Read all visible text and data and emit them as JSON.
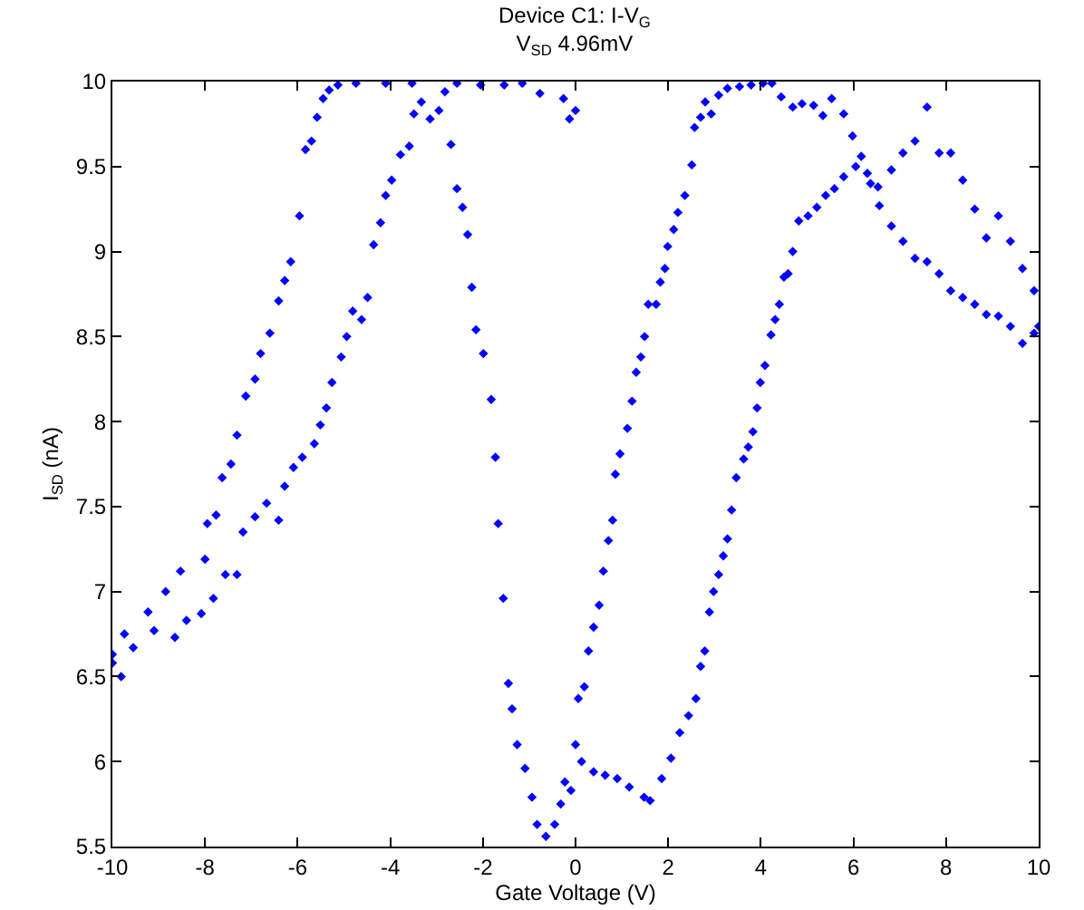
{
  "chart_data": {
    "type": "scatter",
    "title": "Device C1: I-V$_{G}$",
    "subtitle": "V$_{SD}$ 4.96mV",
    "xlabel": "Gate Voltage (V)",
    "ylabel": "I$_{SD}$ (nA)",
    "marker": "diamond",
    "grid": false,
    "xlim": [
      -10,
      10
    ],
    "xticks": [
      -10,
      -8,
      -6,
      -4,
      -2,
      0,
      2,
      4,
      6,
      8,
      10
    ],
    "ylim": [
      5.5,
      10
    ],
    "yticks": [
      5.5,
      6,
      6.5,
      7,
      7.5,
      8,
      8.5,
      9,
      9.5,
      10
    ],
    "series": [
      {
        "color": "#0000ff",
        "x": [
          -10,
          -9.74,
          -9.23,
          -8.85,
          -8.53,
          -8.0,
          -7.95,
          -7.76,
          -7.63,
          -7.44,
          -7.31,
          -7.12,
          -6.92,
          -6.8,
          -6.6,
          -6.41,
          -6.28,
          -6.15,
          -5.96,
          -5.83,
          -5.7,
          -5.58,
          -5.45,
          -5.32,
          -5.13,
          -4.74,
          -4.1,
          -3.53,
          -2.95,
          -2.69,
          -2.56,
          -2.44,
          -2.33,
          -2.24,
          -2.15,
          -1.99,
          -1.82,
          -1.73,
          -1.67,
          -1.56,
          -1.45,
          -1.37,
          -1.26,
          -1.09,
          -0.94,
          -0.83,
          -0.64,
          -0.45,
          -0.32,
          -0.23,
          -0.1,
          0,
          0.13,
          0.39,
          0.64,
          0.9,
          1.16,
          1.48,
          1.61,
          1.86,
          2.06,
          2.25,
          2.44,
          2.6,
          2.7,
          2.79,
          2.89,
          2.98,
          3.09,
          3.19,
          3.28,
          3.37,
          3.47,
          3.63,
          3.73,
          3.83,
          3.92,
          3.99,
          4.09,
          4.22,
          4.31,
          4.4,
          4.5,
          4.59,
          4.69,
          4.82,
          5.02,
          5.21,
          5.4,
          5.59,
          5.79,
          6.05,
          6.3,
          6.53,
          6.82,
          7.07,
          7.33,
          7.59,
          7.85,
          8.1,
          8.36,
          8.62,
          8.87,
          9.13,
          9.39,
          9.65,
          9.9,
          10
        ],
        "values": [
          6.63,
          6.75,
          6.88,
          7.0,
          7.12,
          7.19,
          7.4,
          7.45,
          7.67,
          7.75,
          7.92,
          8.15,
          8.25,
          8.4,
          8.52,
          8.71,
          8.83,
          8.94,
          9.21,
          9.6,
          9.65,
          9.79,
          9.9,
          9.95,
          9.98,
          9.99,
          9.99,
          9.99,
          9.83,
          9.63,
          9.37,
          9.26,
          9.1,
          8.79,
          8.54,
          8.4,
          8.13,
          7.79,
          7.4,
          6.96,
          6.46,
          6.31,
          6.1,
          5.96,
          5.79,
          5.63,
          5.56,
          5.63,
          5.75,
          5.88,
          5.83,
          6.1,
          6.0,
          5.94,
          5.92,
          5.9,
          5.85,
          5.79,
          5.77,
          5.9,
          6.02,
          6.17,
          6.27,
          6.37,
          6.56,
          6.65,
          6.88,
          7.0,
          7.1,
          7.21,
          7.31,
          7.48,
          7.67,
          7.78,
          7.85,
          7.94,
          8.08,
          8.23,
          8.33,
          8.51,
          8.6,
          8.69,
          8.85,
          8.87,
          9.0,
          9.18,
          9.21,
          9.26,
          9.33,
          9.37,
          9.44,
          9.5,
          9.46,
          9.38,
          9.48,
          9.58,
          9.65,
          9.85,
          9.58,
          9.58,
          9.42,
          9.25,
          9.08,
          9.21,
          9.06,
          8.9,
          8.77,
          8.56
        ]
      },
      {
        "color": "#0000ff",
        "x": [
          -10,
          -9.81,
          -9.55,
          -9.1,
          -8.65,
          -8.4,
          -8.08,
          -7.82,
          -7.56,
          -7.31,
          -7.18,
          -6.92,
          -6.67,
          -6.41,
          -6.28,
          -6.09,
          -5.9,
          -5.64,
          -5.51,
          -5.38,
          -5.26,
          -5.06,
          -4.94,
          -4.81,
          -4.62,
          -4.49,
          -4.36,
          -4.21,
          -4.1,
          -3.97,
          -3.78,
          -3.59,
          -3.49,
          -3.33,
          -3.14,
          -2.82,
          -2.56,
          -2.05,
          -1.54,
          -1.15,
          -0.77,
          -0.26,
          -0.13,
          0,
          0.06,
          0.19,
          0.28,
          0.39,
          0.51,
          0.6,
          0.71,
          0.8,
          0.86,
          0.96,
          1.12,
          1.22,
          1.31,
          1.41,
          1.49,
          1.57,
          1.74,
          1.83,
          1.93,
          1.99,
          2.12,
          2.21,
          2.36,
          2.51,
          2.57,
          2.7,
          2.8,
          2.93,
          3.09,
          3.28,
          3.54,
          3.79,
          4.05,
          4.24,
          4.44,
          4.69,
          4.89,
          5.14,
          5.34,
          5.53,
          5.79,
          5.98,
          6.17,
          6.37,
          6.56,
          6.82,
          7.07,
          7.33,
          7.59,
          7.85,
          8.1,
          8.36,
          8.62,
          8.87,
          9.13,
          9.39,
          9.65,
          9.9
        ],
        "values": [
          6.58,
          6.5,
          6.67,
          6.77,
          6.73,
          6.83,
          6.87,
          6.96,
          7.1,
          7.1,
          7.35,
          7.44,
          7.52,
          7.42,
          7.62,
          7.73,
          7.79,
          7.87,
          7.98,
          8.08,
          8.23,
          8.38,
          8.5,
          8.65,
          8.6,
          8.73,
          9.04,
          9.17,
          9.33,
          9.42,
          9.57,
          9.62,
          9.81,
          9.88,
          9.78,
          9.94,
          9.99,
          9.98,
          9.98,
          9.99,
          9.93,
          9.9,
          9.78,
          9.83,
          6.37,
          6.44,
          6.65,
          6.79,
          6.92,
          7.12,
          7.3,
          7.42,
          7.69,
          7.81,
          7.96,
          8.12,
          8.29,
          8.38,
          8.5,
          8.69,
          8.69,
          8.82,
          8.9,
          9.03,
          9.13,
          9.23,
          9.33,
          9.51,
          9.73,
          9.79,
          9.88,
          9.81,
          9.92,
          9.96,
          9.97,
          9.98,
          9.99,
          9.99,
          9.91,
          9.85,
          9.87,
          9.86,
          9.8,
          9.9,
          9.81,
          9.68,
          9.56,
          9.4,
          9.27,
          9.15,
          9.06,
          8.96,
          8.94,
          8.87,
          8.77,
          8.73,
          8.69,
          8.63,
          8.62,
          8.56,
          8.46,
          8.52
        ]
      }
    ]
  }
}
